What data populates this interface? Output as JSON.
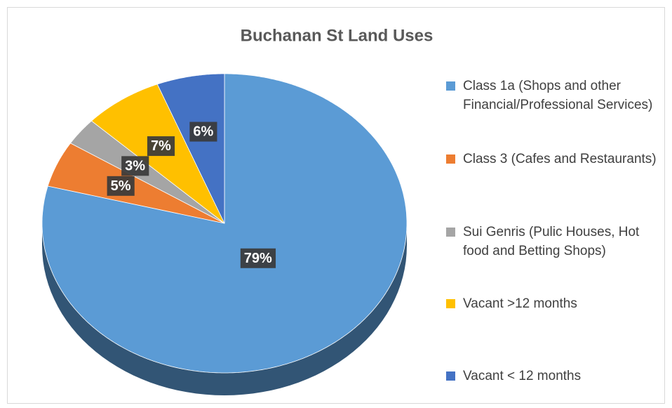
{
  "chart_data": {
    "type": "pie",
    "title": "Buchanan St Land Uses",
    "categories": [
      "Class 1a (Shops and other Financial/Professional Services)",
      "Class 3 (Cafes and Restaurants)",
      "Sui Genris (Pulic Houses, Hot food and Betting Shops)",
      "Vacant >12 months",
      "Vacant < 12 months"
    ],
    "values": [
      79,
      5,
      3,
      7,
      6
    ],
    "value_labels": [
      "79%",
      "5%",
      "3%",
      "7%",
      "6%"
    ],
    "colors": [
      "#5b9bd5",
      "#ed7d31",
      "#a5a5a5",
      "#ffc000",
      "#4472c4"
    ],
    "legend": "right"
  }
}
